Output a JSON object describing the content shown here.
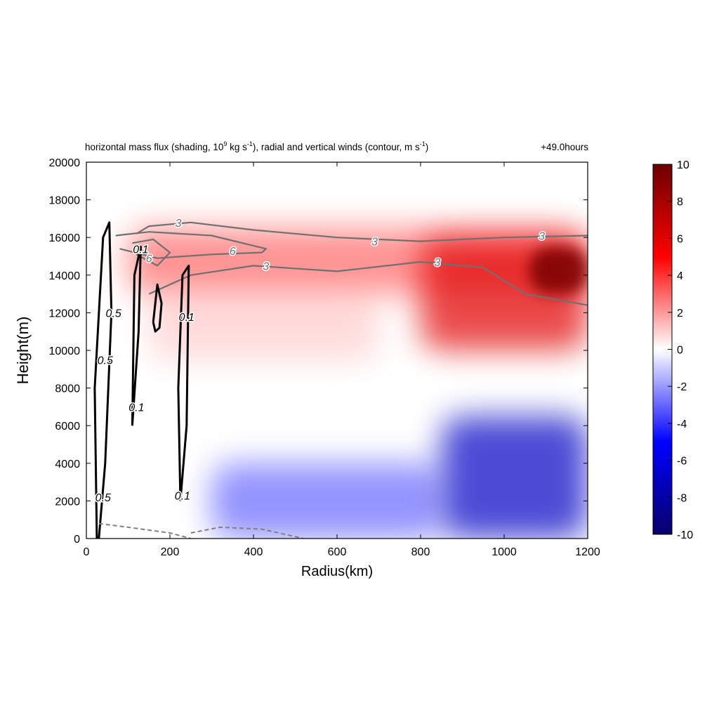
{
  "chart_data": {
    "type": "heatmap",
    "title": "horizontal mass flux (shading, 10^9 kg s^-1), radial and vertical winds (contour, m s^-1)",
    "title_parts": {
      "a": "horizontal mass flux (shading, 10",
      "b": "9",
      "c": " kg s",
      "d": "-1",
      "e": "), radial and vertical winds (contour, m s",
      "f": "-1",
      "g": ")"
    },
    "time_label": "+49.0hours",
    "xlabel": "Radius(km)",
    "ylabel": "Height(m)",
    "xlim": [
      0,
      1200
    ],
    "ylim": [
      0,
      20000
    ],
    "x_ticks": [
      0,
      200,
      400,
      600,
      800,
      1000,
      1200
    ],
    "y_ticks": [
      0,
      2000,
      4000,
      6000,
      8000,
      10000,
      12000,
      14000,
      16000,
      18000,
      20000
    ],
    "colorbar": {
      "range": [
        -10,
        10
      ],
      "ticks": [
        -10,
        -8,
        -6,
        -4,
        -2,
        0,
        2,
        4,
        6,
        8,
        10
      ],
      "colors": [
        "#08006b",
        "#0000ff",
        "#ffffff",
        "#ff0000",
        "#6b0000"
      ]
    },
    "shading_regions": [
      {
        "value": 9.5,
        "x_range": [
          1060,
          1200
        ],
        "y_range": [
          13000,
          15500
        ]
      },
      {
        "value": 6,
        "x_range": [
          800,
          1200
        ],
        "y_range": [
          10000,
          16000
        ]
      },
      {
        "value": 3,
        "x_range": [
          100,
          1200
        ],
        "y_range": [
          13000,
          16500
        ]
      },
      {
        "value": 1,
        "x_range": [
          150,
          700
        ],
        "y_range": [
          9500,
          13000
        ]
      },
      {
        "value": -7,
        "x_range": [
          850,
          1200
        ],
        "y_range": [
          0,
          6500
        ]
      },
      {
        "value": -3,
        "x_range": [
          300,
          850
        ],
        "y_range": [
          0,
          4000
        ]
      }
    ],
    "contours": {
      "radial_wind": [
        {
          "level": 3,
          "x": [
            120,
            150,
            250,
            400,
            600,
            800,
            1000,
            1200
          ],
          "y": [
            16200,
            16600,
            16800,
            16400,
            16000,
            15800,
            16000,
            16100
          ]
        },
        {
          "level": 3,
          "x": [
            150,
            250,
            400,
            600,
            800,
            950,
            1050,
            1200
          ],
          "y": [
            13000,
            14000,
            14500,
            14200,
            14700,
            14400,
            13000,
            12400
          ]
        },
        {
          "level": 6,
          "x": [
            70,
            150,
            300,
            430,
            420,
            300,
            170,
            80
          ],
          "y": [
            16100,
            16300,
            16100,
            15400,
            15200,
            15100,
            14900,
            15400
          ]
        },
        {
          "level": 6,
          "x": [
            110,
            160,
            200,
            170,
            120
          ],
          "y": [
            15700,
            15900,
            15200,
            14500,
            15100
          ]
        }
      ],
      "vertical_wind": [
        {
          "level": 0.5,
          "x": [
            30,
            45,
            60,
            55,
            40,
            20,
            25
          ],
          "y": [
            0,
            4000,
            12000,
            16800,
            16000,
            8000,
            0
          ]
        },
        {
          "level": 0.1,
          "x": [
            110,
            125,
            130,
            115,
            110
          ],
          "y": [
            6000,
            11000,
            15500,
            14000,
            6000
          ]
        },
        {
          "level": 0.1,
          "x": [
            225,
            240,
            245,
            230,
            220,
            225
          ],
          "y": [
            2000,
            6000,
            14500,
            14000,
            8000,
            2000
          ]
        },
        {
          "level": 0.1,
          "x": [
            160,
            170,
            180,
            175,
            165,
            160
          ],
          "y": [
            11500,
            13500,
            12500,
            11200,
            11000,
            11500
          ]
        }
      ],
      "negative_dashed": [
        {
          "x": [
            30,
            100,
            200,
            250
          ],
          "y": [
            800,
            600,
            300,
            0
          ]
        },
        {
          "x": [
            250,
            320,
            420,
            520
          ],
          "y": [
            300,
            600,
            500,
            0
          ]
        }
      ],
      "labels": [
        "3",
        "3",
        "3",
        "3",
        "3",
        "6",
        "6",
        "0.1",
        "0.1",
        "0.1",
        "0.1",
        "0.5",
        "0.5",
        "0.5"
      ]
    }
  }
}
